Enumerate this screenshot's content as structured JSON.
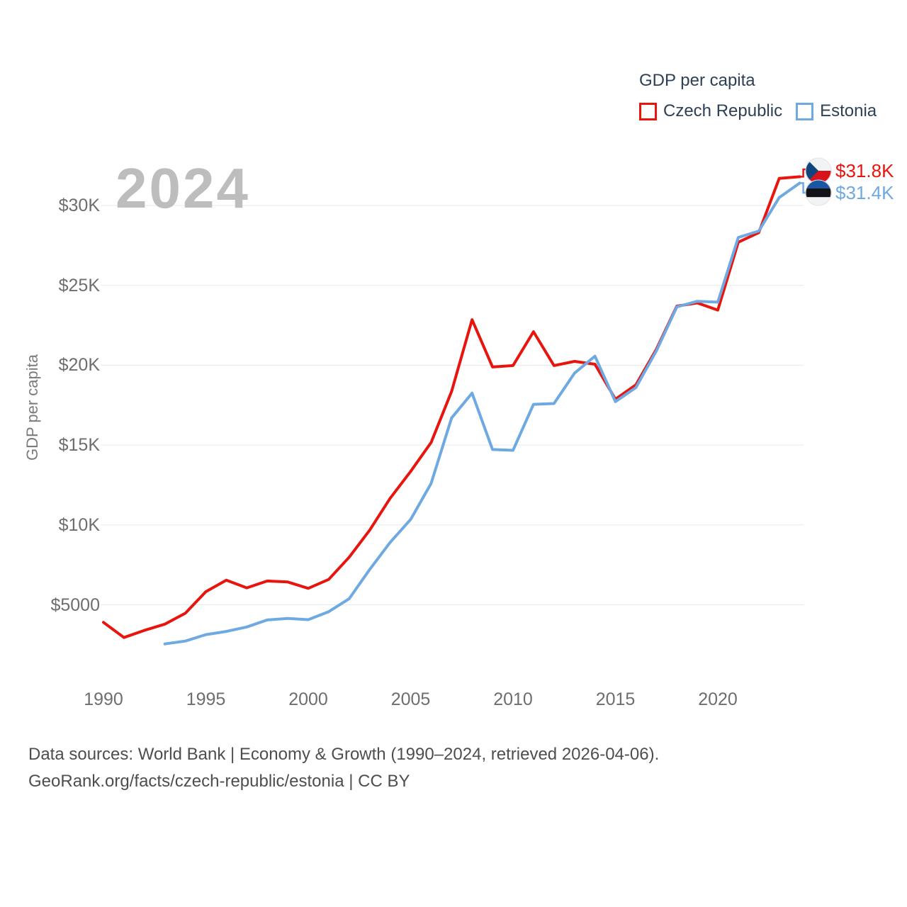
{
  "watermark": "2024",
  "legend": {
    "title": "GDP per capita",
    "items": [
      {
        "label": "Czech Republic",
        "color": "#e8150f"
      },
      {
        "label": "Estonia",
        "color": "#6fa9e2"
      }
    ]
  },
  "end_labels": [
    {
      "series": "Czech Republic",
      "value": "$31.8K",
      "color": "#e8150f",
      "flag": "czech-republic"
    },
    {
      "series": "Estonia",
      "value": "$31.4K",
      "color": "#6fa9e2",
      "flag": "estonia"
    }
  ],
  "footer": {
    "line1": "Data sources: World Bank | Economy & Growth (1990–2024, retrieved 2026-04-06).",
    "line2": "GeoRank.org/facts/czech-republic/estonia | CC BY"
  },
  "chart_data": {
    "type": "line",
    "title": "GDP per capita",
    "xlabel": "",
    "ylabel": "GDP per capita",
    "xlim": [
      1990,
      2024
    ],
    "ylim": [
      1500,
      32500
    ],
    "grid": true,
    "legend_position": "top-right",
    "x_ticks": [
      1990,
      1995,
      2000,
      2005,
      2010,
      2015,
      2020
    ],
    "y_ticks": [
      {
        "value": 5000,
        "label": "$5000"
      },
      {
        "value": 10000,
        "label": "$10K"
      },
      {
        "value": 15000,
        "label": "$15K"
      },
      {
        "value": 20000,
        "label": "$20K"
      },
      {
        "value": 25000,
        "label": "$25K"
      },
      {
        "value": 30000,
        "label": "$30K"
      }
    ],
    "series": [
      {
        "name": "Czech Republic",
        "color": "#e8150f",
        "start_year": 1990,
        "end_value_label": "$31.8K",
        "values": [
          3900,
          2950,
          3400,
          3790,
          4470,
          5820,
          6540,
          6060,
          6490,
          6430,
          6030,
          6590,
          7980,
          9670,
          11670,
          13350,
          15160,
          18360,
          22850,
          19890,
          19980,
          22100,
          19980,
          20240,
          20060,
          17870,
          18770,
          21000,
          23700,
          23900,
          23450,
          27700,
          28300,
          31700,
          31800
        ]
      },
      {
        "name": "Estonia",
        "color": "#6fa9e2",
        "start_year": 1993,
        "end_value_label": "$31.4K",
        "values": [
          2550,
          2730,
          3130,
          3330,
          3610,
          4050,
          4150,
          4070,
          4570,
          5380,
          7210,
          8910,
          10340,
          12600,
          16700,
          18250,
          14720,
          14670,
          17550,
          17600,
          19500,
          20570,
          17720,
          18600,
          20900,
          23650,
          24000,
          23950,
          28000,
          28400,
          30500,
          31400
        ]
      }
    ]
  }
}
